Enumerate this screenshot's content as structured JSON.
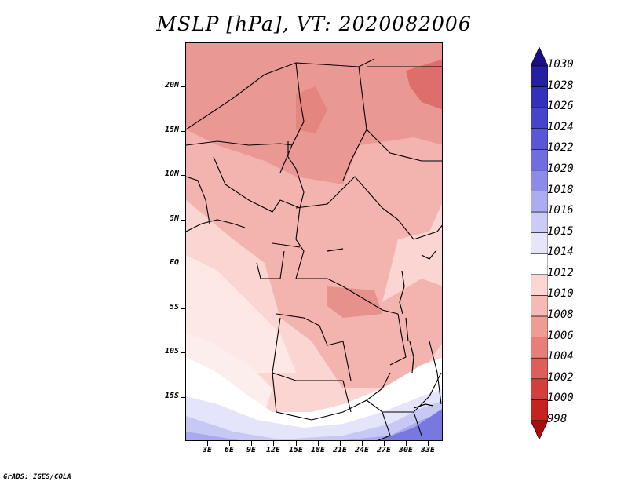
{
  "title": "MSLP [hPa], VT: 2020082006",
  "footer": "GrADS: IGES/COLA",
  "axes": {
    "lat_labels": [
      "20N",
      "15N",
      "10N",
      "5N",
      "EQ",
      "5S",
      "10S",
      "15S"
    ],
    "lon_labels": [
      "3E",
      "6E",
      "9E",
      "12E",
      "15E",
      "18E",
      "21E",
      "24E",
      "27E",
      "30E",
      "33E"
    ],
    "lat_values": [
      20,
      15,
      10,
      5,
      0,
      -5,
      -10,
      -15
    ],
    "lon_values": [
      3,
      6,
      9,
      12,
      15,
      18,
      21,
      24,
      27,
      30,
      33
    ],
    "lat_range": [
      -20,
      25
    ],
    "lon_range": [
      0,
      35
    ]
  },
  "colorbar": {
    "levels": [
      "1030",
      "1028",
      "1026",
      "1024",
      "1022",
      "1020",
      "1018",
      "1016",
      "1015",
      "1014",
      "1012",
      "1010",
      "1008",
      "1006",
      "1004",
      "1002",
      "1000",
      "998"
    ],
    "colors": [
      "#1a0f86",
      "#241fa3",
      "#3131bb",
      "#4444cc",
      "#5858d6",
      "#6e6ee0",
      "#8c8ce8",
      "#acacf0",
      "#cbcbf5",
      "#e6e6fa",
      "#ffffff",
      "#fbd6d2",
      "#f6b9b3",
      "#f09c95",
      "#e87e78",
      "#de5f5a",
      "#d33f3c",
      "#c4231f",
      "#a80e0e"
    ]
  },
  "icons": {
    "colorbar-top": "triangle-up",
    "colorbar-bottom": "triangle-down"
  }
}
